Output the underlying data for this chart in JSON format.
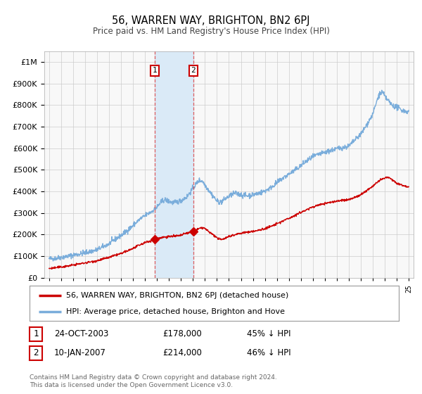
{
  "title": "56, WARREN WAY, BRIGHTON, BN2 6PJ",
  "subtitle": "Price paid vs. HM Land Registry's House Price Index (HPI)",
  "legend_line1": "56, WARREN WAY, BRIGHTON, BN2 6PJ (detached house)",
  "legend_line2": "HPI: Average price, detached house, Brighton and Hove",
  "annotation1_date": "24-OCT-2003",
  "annotation1_price": "£178,000",
  "annotation1_hpi": "45% ↓ HPI",
  "annotation2_date": "10-JAN-2007",
  "annotation2_price": "£214,000",
  "annotation2_hpi": "46% ↓ HPI",
  "footer1": "Contains HM Land Registry data © Crown copyright and database right 2024.",
  "footer2": "This data is licensed under the Open Government Licence v3.0.",
  "red_line_color": "#cc0000",
  "blue_line_color": "#7aaddb",
  "bg_color": "#ffffff",
  "plot_bg_color": "#f8f8f8",
  "grid_color": "#cccccc",
  "shade_color": "#daeaf7",
  "vline_color": "#dd4444",
  "marker1_x": 2003.82,
  "marker1_y": 178000,
  "marker2_x": 2007.03,
  "marker2_y": 214000,
  "vline1_x": 2003.82,
  "vline2_x": 2007.03,
  "ylim": [
    0,
    1050000
  ],
  "xlim_start": 1994.6,
  "xlim_end": 2025.4,
  "xtick_start": 1995,
  "xtick_end": 2025
}
